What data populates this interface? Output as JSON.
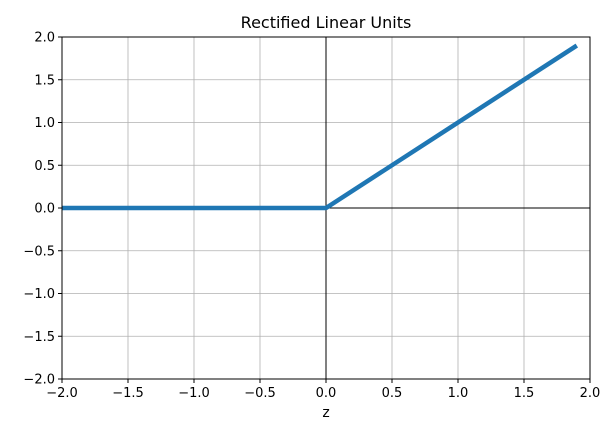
{
  "chart_data": {
    "type": "line",
    "title": "Rectified Linear Units",
    "xlabel": "z",
    "ylabel": "",
    "xlim": [
      -2.0,
      2.0
    ],
    "ylim": [
      -2.0,
      2.0
    ],
    "xticks": [
      "−2.0",
      "−1.5",
      "−1.0",
      "−0.5",
      "0.0",
      "0.5",
      "1.0",
      "1.5",
      "2.0"
    ],
    "yticks": [
      "−2.0",
      "−1.5",
      "−1.0",
      "−0.5",
      "0.0",
      "0.5",
      "1.0",
      "1.5",
      "2.0"
    ],
    "grid": true,
    "series": [
      {
        "x": [
          -2.0,
          0.0,
          1.9
        ],
        "y": [
          0.0,
          0.0,
          1.9
        ],
        "color": "#1f77b4"
      }
    ],
    "reference_lines": {
      "horizontal_at_y": 0.0,
      "vertical_at_x": 0.0,
      "color": "#000000"
    }
  }
}
